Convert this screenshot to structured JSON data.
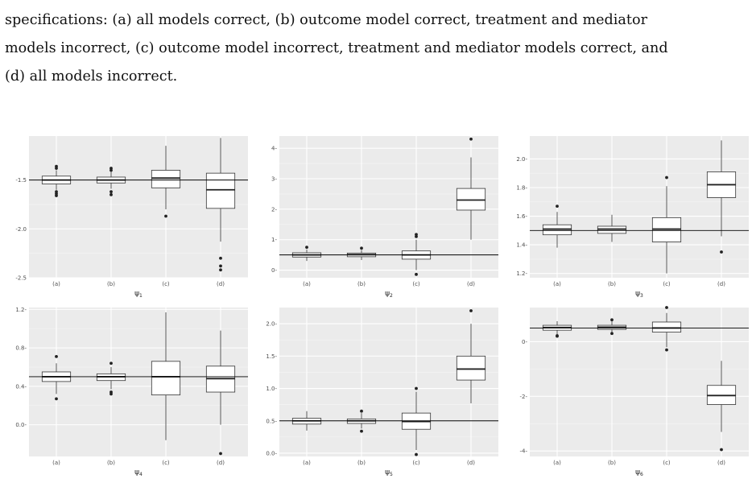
{
  "caption": {
    "lines": [
      "specifications: (a) all models correct, (b) outcome model correct, treatment and mediator",
      "models incorrect, (c) outcome model incorrect, treatment and mediator models correct, and",
      "(d) all models incorrect."
    ]
  },
  "chart_data": [
    {
      "type": "boxplot",
      "xlabel": "ψ1",
      "categories": [
        "(a)",
        "(b)",
        "(c)",
        "(d)"
      ],
      "ylim": [
        -2.5,
        -1.05
      ],
      "yticks": [
        -2.5,
        -2.0,
        -1.5
      ],
      "ytick_labels": [
        "-2.5",
        "-2.0",
        "-1.5"
      ],
      "reference_line": -1.5,
      "boxes": [
        {
          "lower": -1.6,
          "q1": -1.54,
          "median": -1.5,
          "q3": -1.46,
          "upper": -1.4,
          "outliers": [
            -1.36,
            -1.38,
            -1.62,
            -1.64,
            -1.66
          ]
        },
        {
          "lower": -1.59,
          "q1": -1.53,
          "median": -1.5,
          "q3": -1.47,
          "upper": -1.41,
          "outliers": [
            -1.38,
            -1.4,
            -1.62,
            -1.65
          ]
        },
        {
          "lower": -1.8,
          "q1": -1.58,
          "median": -1.48,
          "q3": -1.4,
          "upper": -1.15,
          "outliers": [
            -1.87
          ]
        },
        {
          "lower": -2.13,
          "q1": -1.79,
          "median": -1.6,
          "q3": -1.43,
          "upper": -1.07,
          "outliers": [
            -2.3,
            -2.38,
            -2.42
          ]
        }
      ]
    },
    {
      "type": "boxplot",
      "xlabel": "ψ2",
      "categories": [
        "(a)",
        "(b)",
        "(c)",
        "(d)"
      ],
      "ylim": [
        -0.25,
        4.4
      ],
      "yticks": [
        0,
        1,
        2,
        3,
        4
      ],
      "ytick_labels": [
        "0-",
        "1-",
        "2-",
        "3-",
        "4-"
      ],
      "reference_line": 0.5,
      "boxes": [
        {
          "lower": 0.3,
          "q1": 0.43,
          "median": 0.5,
          "q3": 0.57,
          "upper": 0.68,
          "outliers": [
            0.75
          ]
        },
        {
          "lower": 0.33,
          "q1": 0.44,
          "median": 0.51,
          "q3": 0.56,
          "upper": 0.66,
          "outliers": [
            0.72
          ]
        },
        {
          "lower": 0.0,
          "q1": 0.36,
          "median": 0.5,
          "q3": 0.63,
          "upper": 1.0,
          "outliers": [
            1.1,
            1.17,
            -0.14
          ]
        },
        {
          "lower": 1.0,
          "q1": 1.97,
          "median": 2.3,
          "q3": 2.68,
          "upper": 3.7,
          "outliers": [
            4.3
          ]
        }
      ]
    },
    {
      "type": "boxplot",
      "xlabel": "ψ3",
      "categories": [
        "(a)",
        "(b)",
        "(c)",
        "(d)"
      ],
      "ylim": [
        1.17,
        2.16
      ],
      "yticks": [
        1.2,
        1.4,
        1.6,
        1.8,
        2.0
      ],
      "ytick_labels": [
        "1.2-",
        "1.4-",
        "1.6-",
        "1.8-",
        "2.0-"
      ],
      "reference_line": 1.5,
      "boxes": [
        {
          "lower": 1.38,
          "q1": 1.47,
          "median": 1.51,
          "q3": 1.54,
          "upper": 1.63,
          "outliers": [
            1.67
          ]
        },
        {
          "lower": 1.42,
          "q1": 1.48,
          "median": 1.51,
          "q3": 1.53,
          "upper": 1.61,
          "outliers": []
        },
        {
          "lower": 1.2,
          "q1": 1.42,
          "median": 1.51,
          "q3": 1.59,
          "upper": 1.81,
          "outliers": [
            1.87
          ]
        },
        {
          "lower": 1.46,
          "q1": 1.73,
          "median": 1.82,
          "q3": 1.91,
          "upper": 2.13,
          "outliers": [
            1.35
          ]
        }
      ]
    },
    {
      "type": "boxplot",
      "xlabel": "ψ4",
      "categories": [
        "(a)",
        "(b)",
        "(c)",
        "(d)"
      ],
      "ylim": [
        -0.33,
        1.22
      ],
      "yticks": [
        0.0,
        0.4,
        0.8,
        1.2
      ],
      "ytick_labels": [
        "0.0-",
        "0.4-",
        "0.8-",
        "1.2-"
      ],
      "reference_line": 0.5,
      "boxes": [
        {
          "lower": 0.32,
          "q1": 0.45,
          "median": 0.5,
          "q3": 0.55,
          "upper": 0.64,
          "outliers": [
            0.71,
            0.27
          ]
        },
        {
          "lower": 0.37,
          "q1": 0.46,
          "median": 0.5,
          "q3": 0.53,
          "upper": 0.6,
          "outliers": [
            0.64,
            0.34,
            0.32
          ]
        },
        {
          "lower": -0.16,
          "q1": 0.31,
          "median": 0.5,
          "q3": 0.66,
          "upper": 1.17,
          "outliers": []
        },
        {
          "lower": 0.0,
          "q1": 0.34,
          "median": 0.48,
          "q3": 0.61,
          "upper": 0.98,
          "outliers": [
            -0.3
          ]
        }
      ]
    },
    {
      "type": "boxplot",
      "xlabel": "ψ5",
      "categories": [
        "(a)",
        "(b)",
        "(c)",
        "(d)"
      ],
      "ylim": [
        -0.05,
        2.25
      ],
      "yticks": [
        0.0,
        0.5,
        1.0,
        1.5,
        2.0
      ],
      "ytick_labels": [
        "0.0-",
        "0.5-",
        "1.0-",
        "1.5-",
        "2.0-"
      ],
      "reference_line": 0.5,
      "boxes": [
        {
          "lower": 0.35,
          "q1": 0.45,
          "median": 0.5,
          "q3": 0.54,
          "upper": 0.65,
          "outliers": []
        },
        {
          "lower": 0.38,
          "q1": 0.46,
          "median": 0.5,
          "q3": 0.53,
          "upper": 0.62,
          "outliers": [
            0.65,
            0.34
          ]
        },
        {
          "lower": 0.05,
          "q1": 0.37,
          "median": 0.49,
          "q3": 0.62,
          "upper": 0.95,
          "outliers": [
            1.0,
            -0.02
          ]
        },
        {
          "lower": 0.77,
          "q1": 1.13,
          "median": 1.3,
          "q3": 1.5,
          "upper": 2.0,
          "outliers": [
            2.2
          ]
        }
      ]
    },
    {
      "type": "boxplot",
      "xlabel": "ψ6",
      "categories": [
        "(a)",
        "(b)",
        "(c)",
        "(d)"
      ],
      "ylim": [
        -4.2,
        1.25
      ],
      "yticks": [
        -4,
        -2,
        0
      ],
      "ytick_labels": [
        "-4-",
        "-2-",
        "0-"
      ],
      "reference_line": 0.5,
      "boxes": [
        {
          "lower": 0.25,
          "q1": 0.42,
          "median": 0.52,
          "q3": 0.6,
          "upper": 0.75,
          "outliers": [
            0.2,
            0.22
          ]
        },
        {
          "lower": 0.3,
          "q1": 0.45,
          "median": 0.53,
          "q3": 0.6,
          "upper": 0.75,
          "outliers": [
            0.8,
            0.3
          ]
        },
        {
          "lower": -0.2,
          "q1": 0.35,
          "median": 0.5,
          "q3": 0.72,
          "upper": 1.05,
          "outliers": [
            1.25,
            -0.3
          ]
        },
        {
          "lower": -3.3,
          "q1": -2.3,
          "median": -1.97,
          "q3": -1.6,
          "upper": -0.7,
          "outliers": [
            -3.95
          ]
        }
      ]
    }
  ]
}
